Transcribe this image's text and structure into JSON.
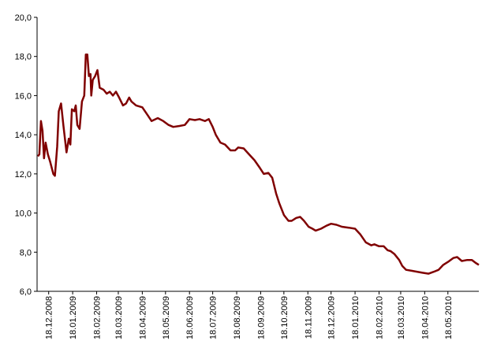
{
  "chart_data": {
    "type": "line",
    "x": [
      "04.12.2008",
      "06.12.2008",
      "08.12.2008",
      "10.12.2008",
      "12.12.2008",
      "14.12.2008",
      "17.12.2008",
      "20.12.2008",
      "24.12.2008",
      "26.12.2008",
      "29.12.2008",
      "31.12.2008",
      "03.01.2009",
      "06.01.2009",
      "10.01.2009",
      "13.01.2009",
      "15.01.2009",
      "17.01.2009",
      "20.01.2009",
      "22.01.2009",
      "24.01.2009",
      "27.01.2009",
      "30.01.2009",
      "02.02.2009",
      "04.02.2009",
      "06.02.2009",
      "08.02.2009",
      "10.02.2009",
      "11.02.2009",
      "13.02.2009",
      "16.02.2009",
      "19.02.2009",
      "22.02.2009",
      "27.02.2009",
      "03.03.2009",
      "07.03.2009",
      "11.03.2009",
      "15.03.2009",
      "19.03.2009",
      "24.03.2009",
      "28.03.2009",
      "01.04.2009",
      "04.04.2009",
      "10.04.2009",
      "18.04.2009",
      "25.04.2009",
      "30.04.2009",
      "08.05.2009",
      "15.05.2009",
      "22.05.2009",
      "28.05.2009",
      "05.06.2009",
      "12.06.2009",
      "18.06.2009",
      "25.06.2009",
      "01.07.2009",
      "08.07.2009",
      "13.07.2009",
      "18.07.2009",
      "22.07.2009",
      "28.07.2009",
      "03.08.2009",
      "10.08.2009",
      "16.08.2009",
      "20.08.2009",
      "27.08.2009",
      "03.09.2009",
      "10.09.2009",
      "17.09.2009",
      "22.09.2009",
      "28.09.2009",
      "03.10.2009",
      "08.10.2009",
      "12.10.2009",
      "18.10.2009",
      "24.10.2009",
      "28.10.2009",
      "03.11.2009",
      "08.11.2009",
      "13.11.2009",
      "19.11.2009",
      "24.11.2009",
      "28.11.2009",
      "05.12.2009",
      "12.12.2009",
      "18.12.2009",
      "25.12.2009",
      "01.01.2010",
      "10.01.2010",
      "18.01.2010",
      "25.01.2010",
      "01.02.2010",
      "08.02.2010",
      "12.02.2010",
      "18.02.2010",
      "24.02.2010",
      "01.03.2010",
      "05.03.2010",
      "10.03.2010",
      "16.03.2010",
      "20.03.2010",
      "25.03.2010",
      "01.04.2010",
      "08.04.2010",
      "15.04.2010",
      "23.04.2010",
      "30.04.2010",
      "06.05.2010",
      "12.05.2010",
      "18.05.2010",
      "25.05.2010",
      "30.05.2010",
      "05.06.2010",
      "12.06.2010",
      "18.06.2010",
      "23.06.2010",
      "27.06.2010"
    ],
    "series": [
      {
        "color": "#800000",
        "values": [
          12.9,
          13.0,
          14.7,
          14.2,
          12.8,
          13.6,
          13.0,
          12.6,
          12.0,
          11.9,
          13.4,
          15.2,
          15.6,
          14.5,
          13.1,
          13.8,
          13.5,
          15.3,
          15.2,
          15.5,
          14.5,
          14.3,
          15.7,
          16.0,
          18.1,
          18.1,
          17.0,
          17.1,
          16.0,
          16.8,
          17.0,
          17.3,
          16.4,
          16.3,
          16.1,
          16.2,
          16.0,
          16.2,
          15.9,
          15.5,
          15.6,
          15.9,
          15.7,
          15.5,
          15.4,
          15.0,
          14.7,
          14.85,
          14.7,
          14.5,
          14.4,
          14.45,
          14.5,
          14.8,
          14.75,
          14.8,
          14.7,
          14.8,
          14.4,
          14.0,
          13.6,
          13.5,
          13.2,
          13.2,
          13.35,
          13.3,
          13.0,
          12.7,
          12.3,
          12.0,
          12.05,
          11.8,
          11.0,
          10.5,
          9.9,
          9.6,
          9.6,
          9.75,
          9.8,
          9.6,
          9.3,
          9.2,
          9.1,
          9.2,
          9.35,
          9.45,
          9.4,
          9.3,
          9.25,
          9.2,
          8.9,
          8.5,
          8.35,
          8.4,
          8.3,
          8.3,
          8.1,
          8.05,
          7.9,
          7.6,
          7.3,
          7.1,
          7.05,
          7.0,
          6.95,
          6.9,
          7.0,
          7.1,
          7.35,
          7.5,
          7.7,
          7.75,
          7.55,
          7.6,
          7.6,
          7.45,
          7.35
        ]
      }
    ],
    "xlim": [
      "03.12.2008",
      "27.06.2010"
    ],
    "xticks": [
      "18.12.2008",
      "18.01.2009",
      "18.02.2009",
      "18.03.2009",
      "18.04.2009",
      "18.05.2009",
      "18.06.2009",
      "18.07.2009",
      "18.08.2009",
      "18.09.2009",
      "18.10.2009",
      "18.11.2009",
      "18.12.2009",
      "18.01.2010",
      "18.02.2010",
      "18.03.2010",
      "18.04.2010",
      "18.05.2010"
    ],
    "ylim": [
      6,
      20
    ],
    "yticks": [
      {
        "value": 6,
        "label": "6,0"
      },
      {
        "value": 8,
        "label": "8,0"
      },
      {
        "value": 10,
        "label": "10,0"
      },
      {
        "value": 12,
        "label": "12,0"
      },
      {
        "value": 14,
        "label": "14,0"
      },
      {
        "value": 16,
        "label": "16,0"
      },
      {
        "value": 18,
        "label": "18,0"
      },
      {
        "value": 20,
        "label": "20,0"
      }
    ],
    "grid": false
  }
}
